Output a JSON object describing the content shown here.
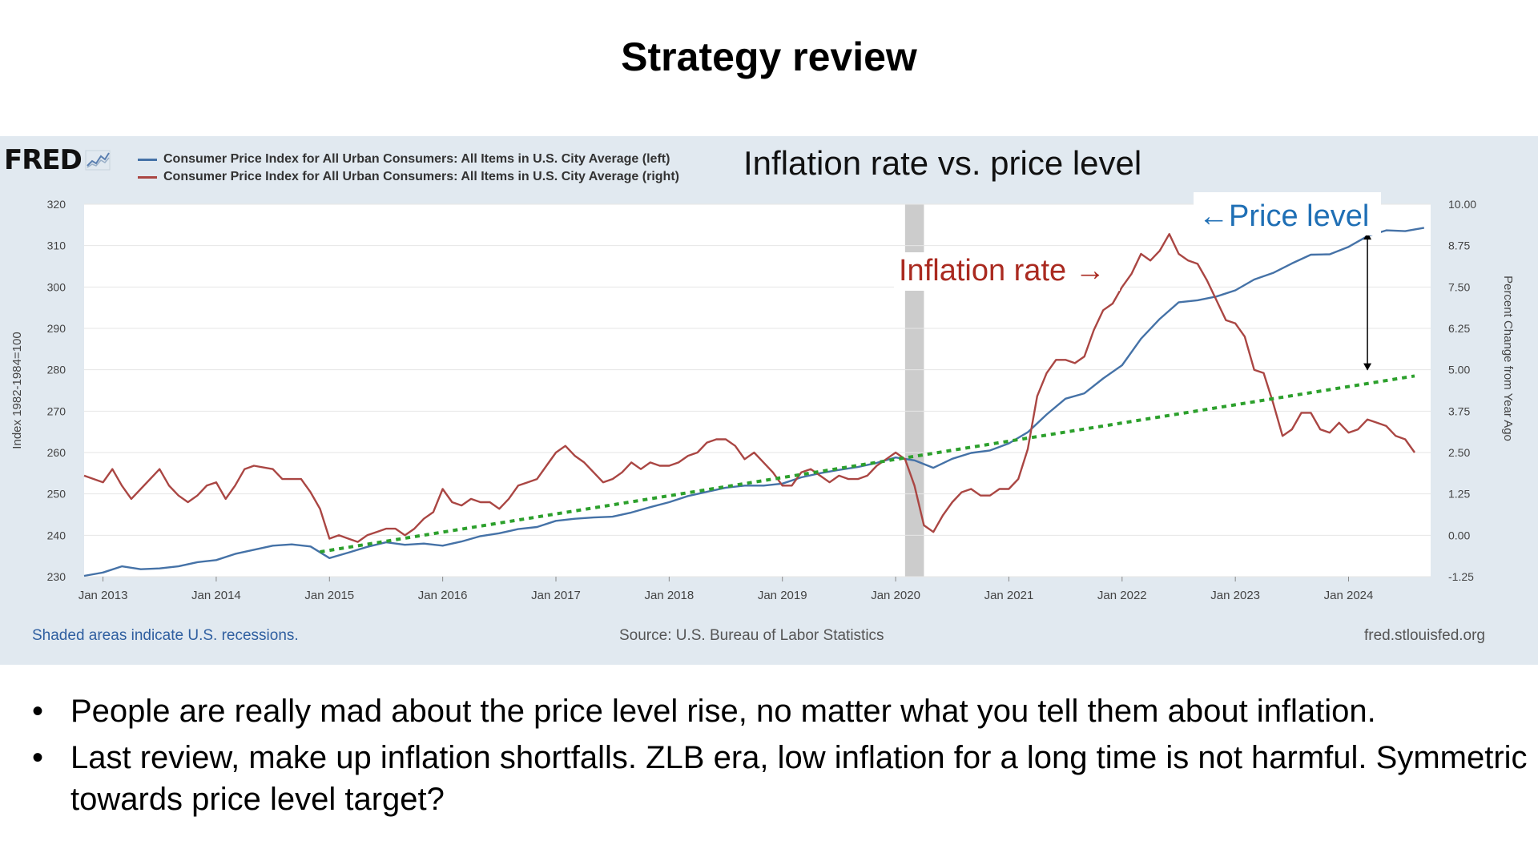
{
  "slide": {
    "title": "Strategy review",
    "bullets": [
      "People are really mad about the price level rise, no matter what you tell them about inflation.",
      "Last review, make up inflation shortfalls. ZLB era, low inflation for a long time is not harmful. Symmetric towards price level target?"
    ]
  },
  "fred": {
    "logo": "FRED",
    "legend": [
      {
        "label": "Consumer Price Index for All Urban Consumers: All Items in U.S. City Average (left)",
        "color": "#4572a7"
      },
      {
        "label": "Consumer Price Index for All Urban Consumers: All Items in U.S. City Average (right)",
        "color": "#aa4643"
      }
    ],
    "footer_left": "Shaded areas indicate U.S. recessions.",
    "footer_source": "Source: U.S. Bureau of Labor Statistics",
    "footer_url": "fred.stlouisfed.org"
  },
  "overlay_title": "Inflation rate vs. price level",
  "chart_data": {
    "type": "line",
    "ylabel": "Index 1982-1984=100",
    "ylabel_right": "Percent Change from Year Ago",
    "ylim": [
      230,
      320
    ],
    "ylim_right": [
      -1.25,
      10
    ],
    "y_ticks": [
      "230",
      "240",
      "250",
      "260",
      "270",
      "280",
      "290",
      "300",
      "310",
      "320"
    ],
    "y_ticks_right": [
      "-1.25",
      "0.00",
      "1.25",
      "2.50",
      "3.75",
      "5.00",
      "6.25",
      "7.50",
      "8.75",
      "10.00"
    ],
    "x_ticks": [
      "Jan 2013",
      "Jan 2014",
      "Jan 2015",
      "Jan 2016",
      "Jan 2017",
      "Jan 2018",
      "Jan 2019",
      "Jan 2020",
      "Jan 2021",
      "Jan 2022",
      "Jan 2023",
      "Jan 2024"
    ],
    "grid": true,
    "recession": {
      "start": "2020-02",
      "end": "2020-04",
      "color": "#cccccc"
    },
    "series": [
      {
        "name": "Consumer Price Index for All Urban Consumers: All Items in U.S. City Average (left)",
        "axis": "left",
        "color": "#4572a7",
        "points": [
          [
            "2012-11",
            230.2
          ],
          [
            "2013-01",
            231.0
          ],
          [
            "2013-03",
            232.5
          ],
          [
            "2013-05",
            231.8
          ],
          [
            "2013-07",
            232.0
          ],
          [
            "2013-09",
            232.5
          ],
          [
            "2013-11",
            233.5
          ],
          [
            "2014-01",
            234.0
          ],
          [
            "2014-03",
            235.5
          ],
          [
            "2014-05",
            236.5
          ],
          [
            "2014-07",
            237.5
          ],
          [
            "2014-09",
            237.8
          ],
          [
            "2014-11",
            237.3
          ],
          [
            "2015-01",
            234.5
          ],
          [
            "2015-03",
            235.8
          ],
          [
            "2015-05",
            237.2
          ],
          [
            "2015-07",
            238.3
          ],
          [
            "2015-09",
            237.7
          ],
          [
            "2015-11",
            238.0
          ],
          [
            "2016-01",
            237.5
          ],
          [
            "2016-03",
            238.5
          ],
          [
            "2016-05",
            239.8
          ],
          [
            "2016-07",
            240.5
          ],
          [
            "2016-09",
            241.5
          ],
          [
            "2016-11",
            242.0
          ],
          [
            "2017-01",
            243.5
          ],
          [
            "2017-03",
            244.0
          ],
          [
            "2017-05",
            244.3
          ],
          [
            "2017-07",
            244.5
          ],
          [
            "2017-09",
            245.5
          ],
          [
            "2017-11",
            246.8
          ],
          [
            "2018-01",
            248.0
          ],
          [
            "2018-03",
            249.5
          ],
          [
            "2018-05",
            250.5
          ],
          [
            "2018-07",
            251.5
          ],
          [
            "2018-09",
            252.0
          ],
          [
            "2018-11",
            252.0
          ],
          [
            "2019-01",
            252.5
          ],
          [
            "2019-03",
            254.0
          ],
          [
            "2019-05",
            255.0
          ],
          [
            "2019-07",
            255.8
          ],
          [
            "2019-09",
            256.5
          ],
          [
            "2019-11",
            257.5
          ],
          [
            "2020-01",
            258.8
          ],
          [
            "2020-03",
            258.1
          ],
          [
            "2020-05",
            256.3
          ],
          [
            "2020-07",
            258.5
          ],
          [
            "2020-09",
            259.9
          ],
          [
            "2020-11",
            260.5
          ],
          [
            "2021-01",
            262.2
          ],
          [
            "2021-03",
            264.9
          ],
          [
            "2021-05",
            269.2
          ],
          [
            "2021-07",
            273.0
          ],
          [
            "2021-09",
            274.3
          ],
          [
            "2021-11",
            277.9
          ],
          [
            "2022-01",
            281.1
          ],
          [
            "2022-03",
            287.5
          ],
          [
            "2022-05",
            292.3
          ],
          [
            "2022-07",
            296.3
          ],
          [
            "2022-09",
            296.8
          ],
          [
            "2022-11",
            297.7
          ],
          [
            "2023-01",
            299.2
          ],
          [
            "2023-03",
            301.8
          ],
          [
            "2023-05",
            303.4
          ],
          [
            "2023-07",
            305.7
          ],
          [
            "2023-09",
            307.8
          ],
          [
            "2023-11",
            307.9
          ],
          [
            "2024-01",
            309.7
          ],
          [
            "2024-03",
            312.3
          ],
          [
            "2024-05",
            313.7
          ],
          [
            "2024-07",
            313.5
          ],
          [
            "2024-09",
            314.3
          ]
        ]
      },
      {
        "name": "Consumer Price Index for All Urban Consumers: All Items in U.S. City Average (right)",
        "axis": "right",
        "color": "#aa4643",
        "points": [
          [
            "2012-11",
            1.8
          ],
          [
            "2013-01",
            1.6
          ],
          [
            "2013-02",
            2.0
          ],
          [
            "2013-03",
            1.5
          ],
          [
            "2013-04",
            1.1
          ],
          [
            "2013-05",
            1.4
          ],
          [
            "2013-07",
            2.0
          ],
          [
            "2013-08",
            1.5
          ],
          [
            "2013-09",
            1.2
          ],
          [
            "2013-10",
            1.0
          ],
          [
            "2013-11",
            1.2
          ],
          [
            "2013-12",
            1.5
          ],
          [
            "2014-01",
            1.6
          ],
          [
            "2014-02",
            1.1
          ],
          [
            "2014-03",
            1.5
          ],
          [
            "2014-04",
            2.0
          ],
          [
            "2014-05",
            2.1
          ],
          [
            "2014-07",
            2.0
          ],
          [
            "2014-08",
            1.7
          ],
          [
            "2014-09",
            1.7
          ],
          [
            "2014-10",
            1.7
          ],
          [
            "2014-11",
            1.3
          ],
          [
            "2014-12",
            0.8
          ],
          [
            "2015-01",
            -0.1
          ],
          [
            "2015-02",
            0.0
          ],
          [
            "2015-03",
            -0.1
          ],
          [
            "2015-04",
            -0.2
          ],
          [
            "2015-05",
            0.0
          ],
          [
            "2015-06",
            0.1
          ],
          [
            "2015-07",
            0.2
          ],
          [
            "2015-08",
            0.2
          ],
          [
            "2015-09",
            0.0
          ],
          [
            "2015-10",
            0.2
          ],
          [
            "2015-11",
            0.5
          ],
          [
            "2015-12",
            0.7
          ],
          [
            "2016-01",
            1.4
          ],
          [
            "2016-02",
            1.0
          ],
          [
            "2016-03",
            0.9
          ],
          [
            "2016-04",
            1.1
          ],
          [
            "2016-05",
            1.0
          ],
          [
            "2016-06",
            1.0
          ],
          [
            "2016-07",
            0.8
          ],
          [
            "2016-08",
            1.1
          ],
          [
            "2016-09",
            1.5
          ],
          [
            "2016-10",
            1.6
          ],
          [
            "2016-11",
            1.7
          ],
          [
            "2016-12",
            2.1
          ],
          [
            "2017-01",
            2.5
          ],
          [
            "2017-02",
            2.7
          ],
          [
            "2017-03",
            2.4
          ],
          [
            "2017-04",
            2.2
          ],
          [
            "2017-05",
            1.9
          ],
          [
            "2017-06",
            1.6
          ],
          [
            "2017-07",
            1.7
          ],
          [
            "2017-08",
            1.9
          ],
          [
            "2017-09",
            2.2
          ],
          [
            "2017-10",
            2.0
          ],
          [
            "2017-11",
            2.2
          ],
          [
            "2017-12",
            2.1
          ],
          [
            "2018-01",
            2.1
          ],
          [
            "2018-02",
            2.2
          ],
          [
            "2018-03",
            2.4
          ],
          [
            "2018-04",
            2.5
          ],
          [
            "2018-05",
            2.8
          ],
          [
            "2018-06",
            2.9
          ],
          [
            "2018-07",
            2.9
          ],
          [
            "2018-08",
            2.7
          ],
          [
            "2018-09",
            2.3
          ],
          [
            "2018-10",
            2.5
          ],
          [
            "2018-11",
            2.2
          ],
          [
            "2018-12",
            1.9
          ],
          [
            "2019-01",
            1.5
          ],
          [
            "2019-02",
            1.5
          ],
          [
            "2019-03",
            1.9
          ],
          [
            "2019-04",
            2.0
          ],
          [
            "2019-05",
            1.8
          ],
          [
            "2019-06",
            1.6
          ],
          [
            "2019-07",
            1.8
          ],
          [
            "2019-08",
            1.7
          ],
          [
            "2019-09",
            1.7
          ],
          [
            "2019-10",
            1.8
          ],
          [
            "2019-11",
            2.1
          ],
          [
            "2019-12",
            2.3
          ],
          [
            "2020-01",
            2.5
          ],
          [
            "2020-02",
            2.3
          ],
          [
            "2020-03",
            1.5
          ],
          [
            "2020-04",
            0.3
          ],
          [
            "2020-05",
            0.1
          ],
          [
            "2020-06",
            0.6
          ],
          [
            "2020-07",
            1.0
          ],
          [
            "2020-08",
            1.3
          ],
          [
            "2020-09",
            1.4
          ],
          [
            "2020-10",
            1.2
          ],
          [
            "2020-11",
            1.2
          ],
          [
            "2020-12",
            1.4
          ],
          [
            "2021-01",
            1.4
          ],
          [
            "2021-02",
            1.7
          ],
          [
            "2021-03",
            2.6
          ],
          [
            "2021-04",
            4.2
          ],
          [
            "2021-05",
            4.9
          ],
          [
            "2021-06",
            5.3
          ],
          [
            "2021-07",
            5.3
          ],
          [
            "2021-08",
            5.2
          ],
          [
            "2021-09",
            5.4
          ],
          [
            "2021-10",
            6.2
          ],
          [
            "2021-11",
            6.8
          ],
          [
            "2021-12",
            7.0
          ],
          [
            "2022-01",
            7.5
          ],
          [
            "2022-02",
            7.9
          ],
          [
            "2022-03",
            8.5
          ],
          [
            "2022-04",
            8.3
          ],
          [
            "2022-05",
            8.6
          ],
          [
            "2022-06",
            9.1
          ],
          [
            "2022-07",
            8.5
          ],
          [
            "2022-08",
            8.3
          ],
          [
            "2022-09",
            8.2
          ],
          [
            "2022-10",
            7.7
          ],
          [
            "2022-11",
            7.1
          ],
          [
            "2022-12",
            6.5
          ],
          [
            "2023-01",
            6.4
          ],
          [
            "2023-02",
            6.0
          ],
          [
            "2023-03",
            5.0
          ],
          [
            "2023-04",
            4.9
          ],
          [
            "2023-05",
            4.0
          ],
          [
            "2023-06",
            3.0
          ],
          [
            "2023-07",
            3.2
          ],
          [
            "2023-08",
            3.7
          ],
          [
            "2023-09",
            3.7
          ],
          [
            "2023-10",
            3.2
          ],
          [
            "2023-11",
            3.1
          ],
          [
            "2023-12",
            3.4
          ],
          [
            "2024-01",
            3.1
          ],
          [
            "2024-02",
            3.2
          ],
          [
            "2024-03",
            3.5
          ],
          [
            "2024-04",
            3.4
          ],
          [
            "2024-05",
            3.3
          ],
          [
            "2024-06",
            3.0
          ],
          [
            "2024-07",
            2.9
          ],
          [
            "2024-08",
            2.5
          ]
        ]
      }
    ],
    "trend_line": {
      "axis": "left",
      "color": "#2ca02c",
      "style": "dotted",
      "start": [
        "2014-12",
        236.0
      ],
      "end": [
        "2024-08",
        278.5
      ]
    },
    "annotations": [
      {
        "text": "Inflation rate →",
        "color": "#aa2a20"
      },
      {
        "text": "←Price level",
        "color": "#1f6fb5"
      }
    ]
  }
}
